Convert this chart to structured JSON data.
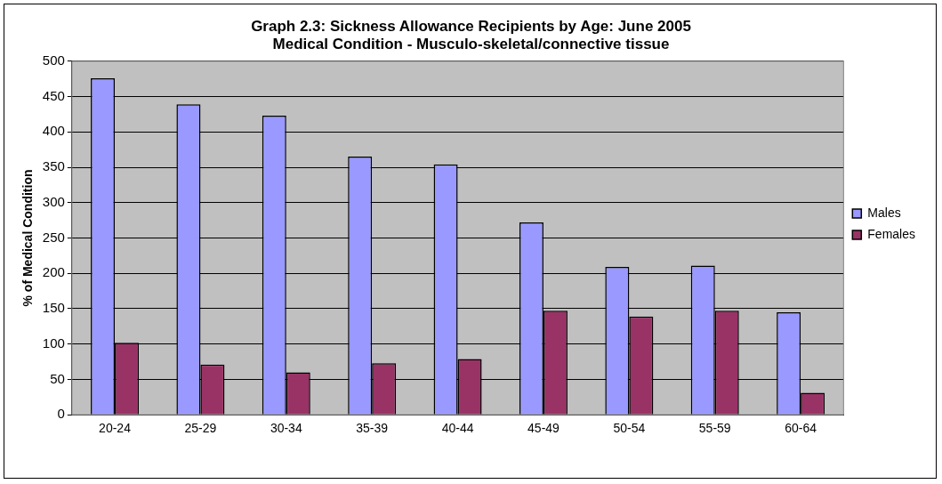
{
  "chart_data": {
    "type": "bar",
    "title": [
      "Graph 2.3: Sickness Allowance Recipients by Age: June 2005",
      "Medical Condition - Musculo-skeletal/connective tissue"
    ],
    "ylabel": "% of Medical Condition",
    "categories": [
      "20-24",
      "25-29",
      "30-34",
      "35-39",
      "40-44",
      "45-49",
      "50-54",
      "55-59",
      "60-64"
    ],
    "series": [
      {
        "name": "Males",
        "color": "#9999ff",
        "values": [
          476,
          439,
          423,
          365,
          354,
          272,
          209,
          211,
          145
        ]
      },
      {
        "name": "Females",
        "color": "#993366",
        "values": [
          102,
          71,
          60,
          73,
          79,
          147,
          139,
          147,
          31
        ]
      }
    ],
    "ylim": [
      0,
      500
    ],
    "yticks": [
      0,
      50,
      100,
      150,
      200,
      250,
      300,
      350,
      400,
      450,
      500
    ],
    "grid": "y",
    "legend": "right"
  }
}
